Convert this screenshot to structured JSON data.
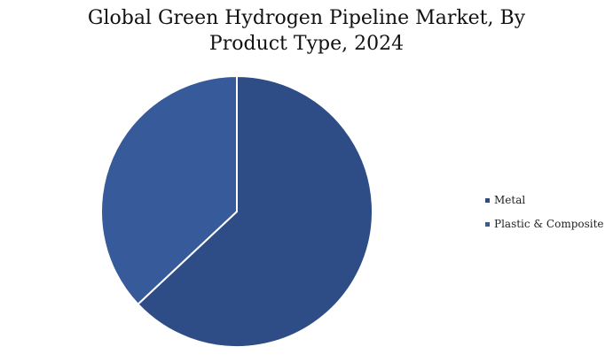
{
  "chart_data": {
    "type": "pie",
    "title_lines": [
      "Global Green Hydrogen Pipeline Market, By",
      "Product Type, 2024"
    ],
    "slices": [
      {
        "label": "Metal",
        "value": 63,
        "color": "#2e4d87"
      },
      {
        "label": "Plastic & Composite",
        "value": 37,
        "color": "#375a9b"
      }
    ],
    "start_angle_deg": 0,
    "direction": "clockwise",
    "legend_position": "right"
  }
}
